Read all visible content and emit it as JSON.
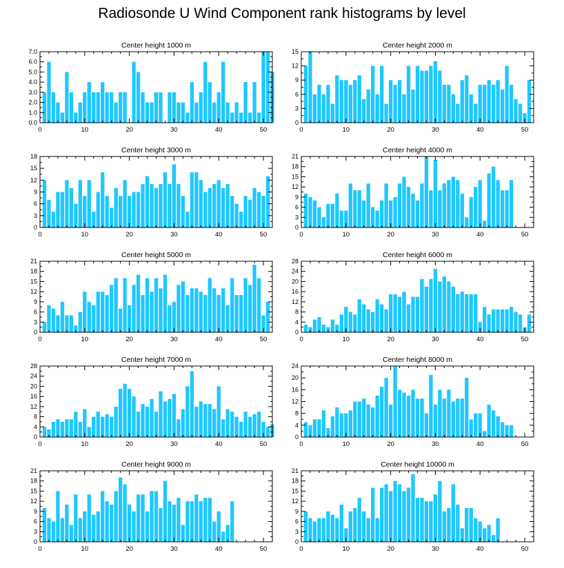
{
  "title": "Radiosonde U Wind Component rank histograms by level",
  "bar_color": "#1ec8ff",
  "axis_color": "#000000",
  "chart_data": [
    {
      "type": "bar",
      "title": "Center height 1000 m",
      "xlim": [
        0,
        52
      ],
      "ylim": [
        0,
        7
      ],
      "x_ticks": [
        0,
        10,
        20,
        30,
        40,
        50
      ],
      "y_ticks": [
        0,
        1,
        2,
        3,
        4,
        5,
        6,
        7
      ],
      "y_tick_labels": [
        "0.0",
        "1.0",
        "2.0",
        "3.0",
        "4.0",
        "5.0",
        "6.0",
        "7.0"
      ],
      "values": [
        3,
        6,
        3,
        2,
        1,
        5,
        3,
        1,
        2,
        3,
        4,
        3,
        3,
        4,
        3,
        3,
        2,
        3,
        3,
        0,
        6,
        5,
        3,
        2,
        2,
        3,
        3,
        0,
        3,
        3,
        2,
        2,
        1,
        4,
        2,
        3,
        6,
        4,
        2,
        3,
        6,
        2,
        1,
        2,
        1,
        4,
        1,
        4,
        1,
        7,
        7,
        5
      ]
    },
    {
      "type": "bar",
      "title": "Center height 2000 m",
      "xlim": [
        0,
        52
      ],
      "ylim": [
        0,
        15
      ],
      "x_ticks": [
        0,
        10,
        20,
        30,
        40,
        50
      ],
      "y_ticks": [
        0,
        3,
        6,
        9,
        12,
        15
      ],
      "y_tick_labels": [
        "0",
        "3",
        "6",
        "9",
        "12",
        "15"
      ],
      "values": [
        12,
        15,
        6,
        8,
        6,
        8,
        4,
        10,
        9,
        9,
        8,
        9,
        10,
        5,
        7,
        12,
        6,
        12,
        4,
        9,
        8,
        9,
        6,
        12,
        7,
        12,
        11,
        11,
        12,
        13,
        11,
        8,
        8,
        6,
        4,
        9,
        10,
        6,
        4,
        8,
        8,
        9,
        8,
        9,
        7,
        12,
        8,
        5,
        4,
        2,
        9
      ]
    },
    {
      "type": "bar",
      "title": "Center height 3000 m",
      "xlim": [
        0,
        52
      ],
      "ylim": [
        0,
        18
      ],
      "x_ticks": [
        0,
        10,
        20,
        30,
        40,
        50
      ],
      "y_ticks": [
        0,
        3,
        6,
        9,
        12,
        15,
        18
      ],
      "y_tick_labels": [
        "0",
        "3",
        "6",
        "9",
        "12",
        "15",
        "18"
      ],
      "values": [
        12,
        7,
        4,
        9,
        9,
        12,
        10,
        6,
        12,
        8,
        12,
        4,
        9,
        14,
        8,
        5,
        10,
        8,
        12,
        8,
        9,
        9,
        11,
        13,
        11,
        10,
        11,
        14,
        11,
        16,
        11,
        8,
        4,
        14,
        14,
        12,
        9,
        10,
        11,
        12,
        10,
        11,
        8,
        6,
        4,
        8,
        7,
        10,
        9,
        8,
        13
      ]
    },
    {
      "type": "bar",
      "title": "Center height 4000 m",
      "xlim": [
        0,
        52
      ],
      "ylim": [
        0,
        21
      ],
      "x_ticks": [
        0,
        10,
        20,
        30,
        40,
        50
      ],
      "y_ticks": [
        0,
        3,
        6,
        9,
        12,
        15,
        18,
        21
      ],
      "y_tick_labels": [
        "0",
        "3",
        "6",
        "9",
        "12",
        "15",
        "18",
        "21"
      ],
      "values": [
        10,
        9,
        8,
        6,
        3,
        7,
        7,
        10,
        5,
        5,
        13,
        11,
        11,
        8,
        13,
        6,
        5,
        8,
        13,
        8,
        9,
        13,
        15,
        12,
        10,
        8,
        13,
        21,
        11,
        20,
        11,
        13,
        14,
        15,
        14,
        10,
        3,
        9,
        12,
        14,
        2,
        16,
        18,
        14,
        11,
        11,
        14
      ]
    },
    {
      "type": "bar",
      "title": "Center height 5000 m",
      "xlim": [
        0,
        52
      ],
      "ylim": [
        0,
        21
      ],
      "x_ticks": [
        0,
        10,
        20,
        30,
        40,
        50
      ],
      "y_ticks": [
        0,
        3,
        6,
        9,
        12,
        15,
        18,
        21
      ],
      "y_tick_labels": [
        "0",
        "3",
        "6",
        "9",
        "12",
        "15",
        "18",
        "21"
      ],
      "values": [
        3,
        8,
        7,
        5,
        9,
        5,
        5,
        2,
        6,
        12,
        9,
        8,
        12,
        12,
        11,
        14,
        16,
        7,
        16,
        8,
        14,
        17,
        11,
        16,
        12,
        16,
        13,
        17,
        8,
        9,
        14,
        15,
        11,
        13,
        13,
        12,
        11,
        16,
        13,
        11,
        13,
        8,
        16,
        11,
        11,
        16,
        14,
        20,
        16,
        5,
        9
      ]
    },
    {
      "type": "bar",
      "title": "Center height 6000 m",
      "xlim": [
        0,
        52
      ],
      "ylim": [
        0,
        28
      ],
      "x_ticks": [
        0,
        10,
        20,
        30,
        40,
        50
      ],
      "y_ticks": [
        0,
        4,
        8,
        12,
        16,
        20,
        24,
        28
      ],
      "y_tick_labels": [
        "0",
        "4",
        "8",
        "12",
        "16",
        "20",
        "24",
        "28"
      ],
      "values": [
        3,
        2,
        5,
        6,
        3,
        2,
        5,
        3,
        7,
        10,
        8,
        7,
        13,
        11,
        9,
        8,
        13,
        11,
        9,
        15,
        15,
        14,
        16,
        11,
        14,
        14,
        21,
        18,
        21,
        25,
        20,
        22,
        20,
        18,
        15,
        16,
        15,
        15,
        15,
        4,
        10,
        7,
        9,
        9,
        9,
        9,
        10,
        8,
        7,
        2,
        7
      ]
    },
    {
      "type": "bar",
      "title": "Center height 7000 m",
      "xlim": [
        0,
        52
      ],
      "ylim": [
        0,
        28
      ],
      "x_ticks": [
        0,
        10,
        20,
        30,
        40,
        50
      ],
      "y_ticks": [
        0,
        4,
        8,
        12,
        16,
        20,
        24,
        28
      ],
      "y_tick_labels": [
        "0",
        "4",
        "8",
        "12",
        "16",
        "20",
        "24",
        "28"
      ],
      "values": [
        4,
        3,
        6,
        7,
        6,
        7,
        7,
        10,
        6,
        11,
        4,
        8,
        10,
        8,
        9,
        8,
        12,
        19,
        21,
        19,
        16,
        10,
        13,
        12,
        15,
        10,
        18,
        14,
        15,
        17,
        7,
        11,
        20,
        26,
        12,
        14,
        13,
        13,
        11,
        20,
        7,
        11,
        10,
        8,
        6,
        10,
        8,
        9,
        10,
        6,
        4,
        5
      ]
    },
    {
      "type": "bar",
      "title": "Center height 8000 m",
      "xlim": [
        0,
        52
      ],
      "ylim": [
        0,
        24
      ],
      "x_ticks": [
        0,
        10,
        20,
        30,
        40,
        50
      ],
      "y_ticks": [
        0,
        4,
        8,
        12,
        16,
        20,
        24
      ],
      "y_tick_labels": [
        "0",
        "4",
        "8",
        "12",
        "16",
        "20",
        "24"
      ],
      "values": [
        5,
        4,
        6,
        6,
        9,
        3,
        7,
        10,
        8,
        8,
        9,
        12,
        12,
        13,
        11,
        10,
        14,
        17,
        20,
        11,
        24,
        16,
        15,
        14,
        16,
        13,
        13,
        8,
        21,
        11,
        16,
        13,
        16,
        12,
        13,
        13,
        20,
        6,
        8,
        8,
        2,
        11,
        9,
        7,
        5,
        4,
        4
      ]
    },
    {
      "type": "bar",
      "title": "Center height 9000 m",
      "xlim": [
        0,
        52
      ],
      "ylim": [
        0,
        21
      ],
      "x_ticks": [
        0,
        10,
        20,
        30,
        40,
        50
      ],
      "y_ticks": [
        0,
        3,
        6,
        9,
        12,
        15,
        18,
        21
      ],
      "y_tick_labels": [
        "0",
        "3",
        "6",
        "9",
        "12",
        "15",
        "18",
        "21"
      ],
      "values": [
        10,
        7,
        6,
        15,
        7,
        11,
        5,
        14,
        7,
        9,
        14,
        8,
        9,
        15,
        12,
        11,
        15,
        19,
        17,
        11,
        9,
        14,
        14,
        9,
        15,
        15,
        10,
        18,
        12,
        11,
        13,
        5,
        12,
        12,
        14,
        12,
        13,
        13,
        6,
        9,
        3,
        5,
        12
      ]
    },
    {
      "type": "bar",
      "title": "Center height 10000 m",
      "xlim": [
        0,
        52
      ],
      "ylim": [
        0,
        21
      ],
      "x_ticks": [
        0,
        10,
        20,
        30,
        40,
        50
      ],
      "y_ticks": [
        0,
        3,
        6,
        9,
        12,
        15,
        18,
        21
      ],
      "y_tick_labels": [
        "0",
        "3",
        "6",
        "9",
        "12",
        "15",
        "18",
        "21"
      ],
      "values": [
        9,
        7,
        6,
        7,
        7,
        9,
        8,
        7,
        11,
        4,
        9,
        10,
        13,
        9,
        7,
        16,
        7,
        16,
        17,
        15,
        18,
        17,
        15,
        16,
        20,
        13,
        13,
        12,
        12,
        14,
        18,
        9,
        10,
        17,
        11,
        4,
        10,
        10,
        7,
        6,
        4,
        5,
        2,
        7
      ]
    }
  ]
}
